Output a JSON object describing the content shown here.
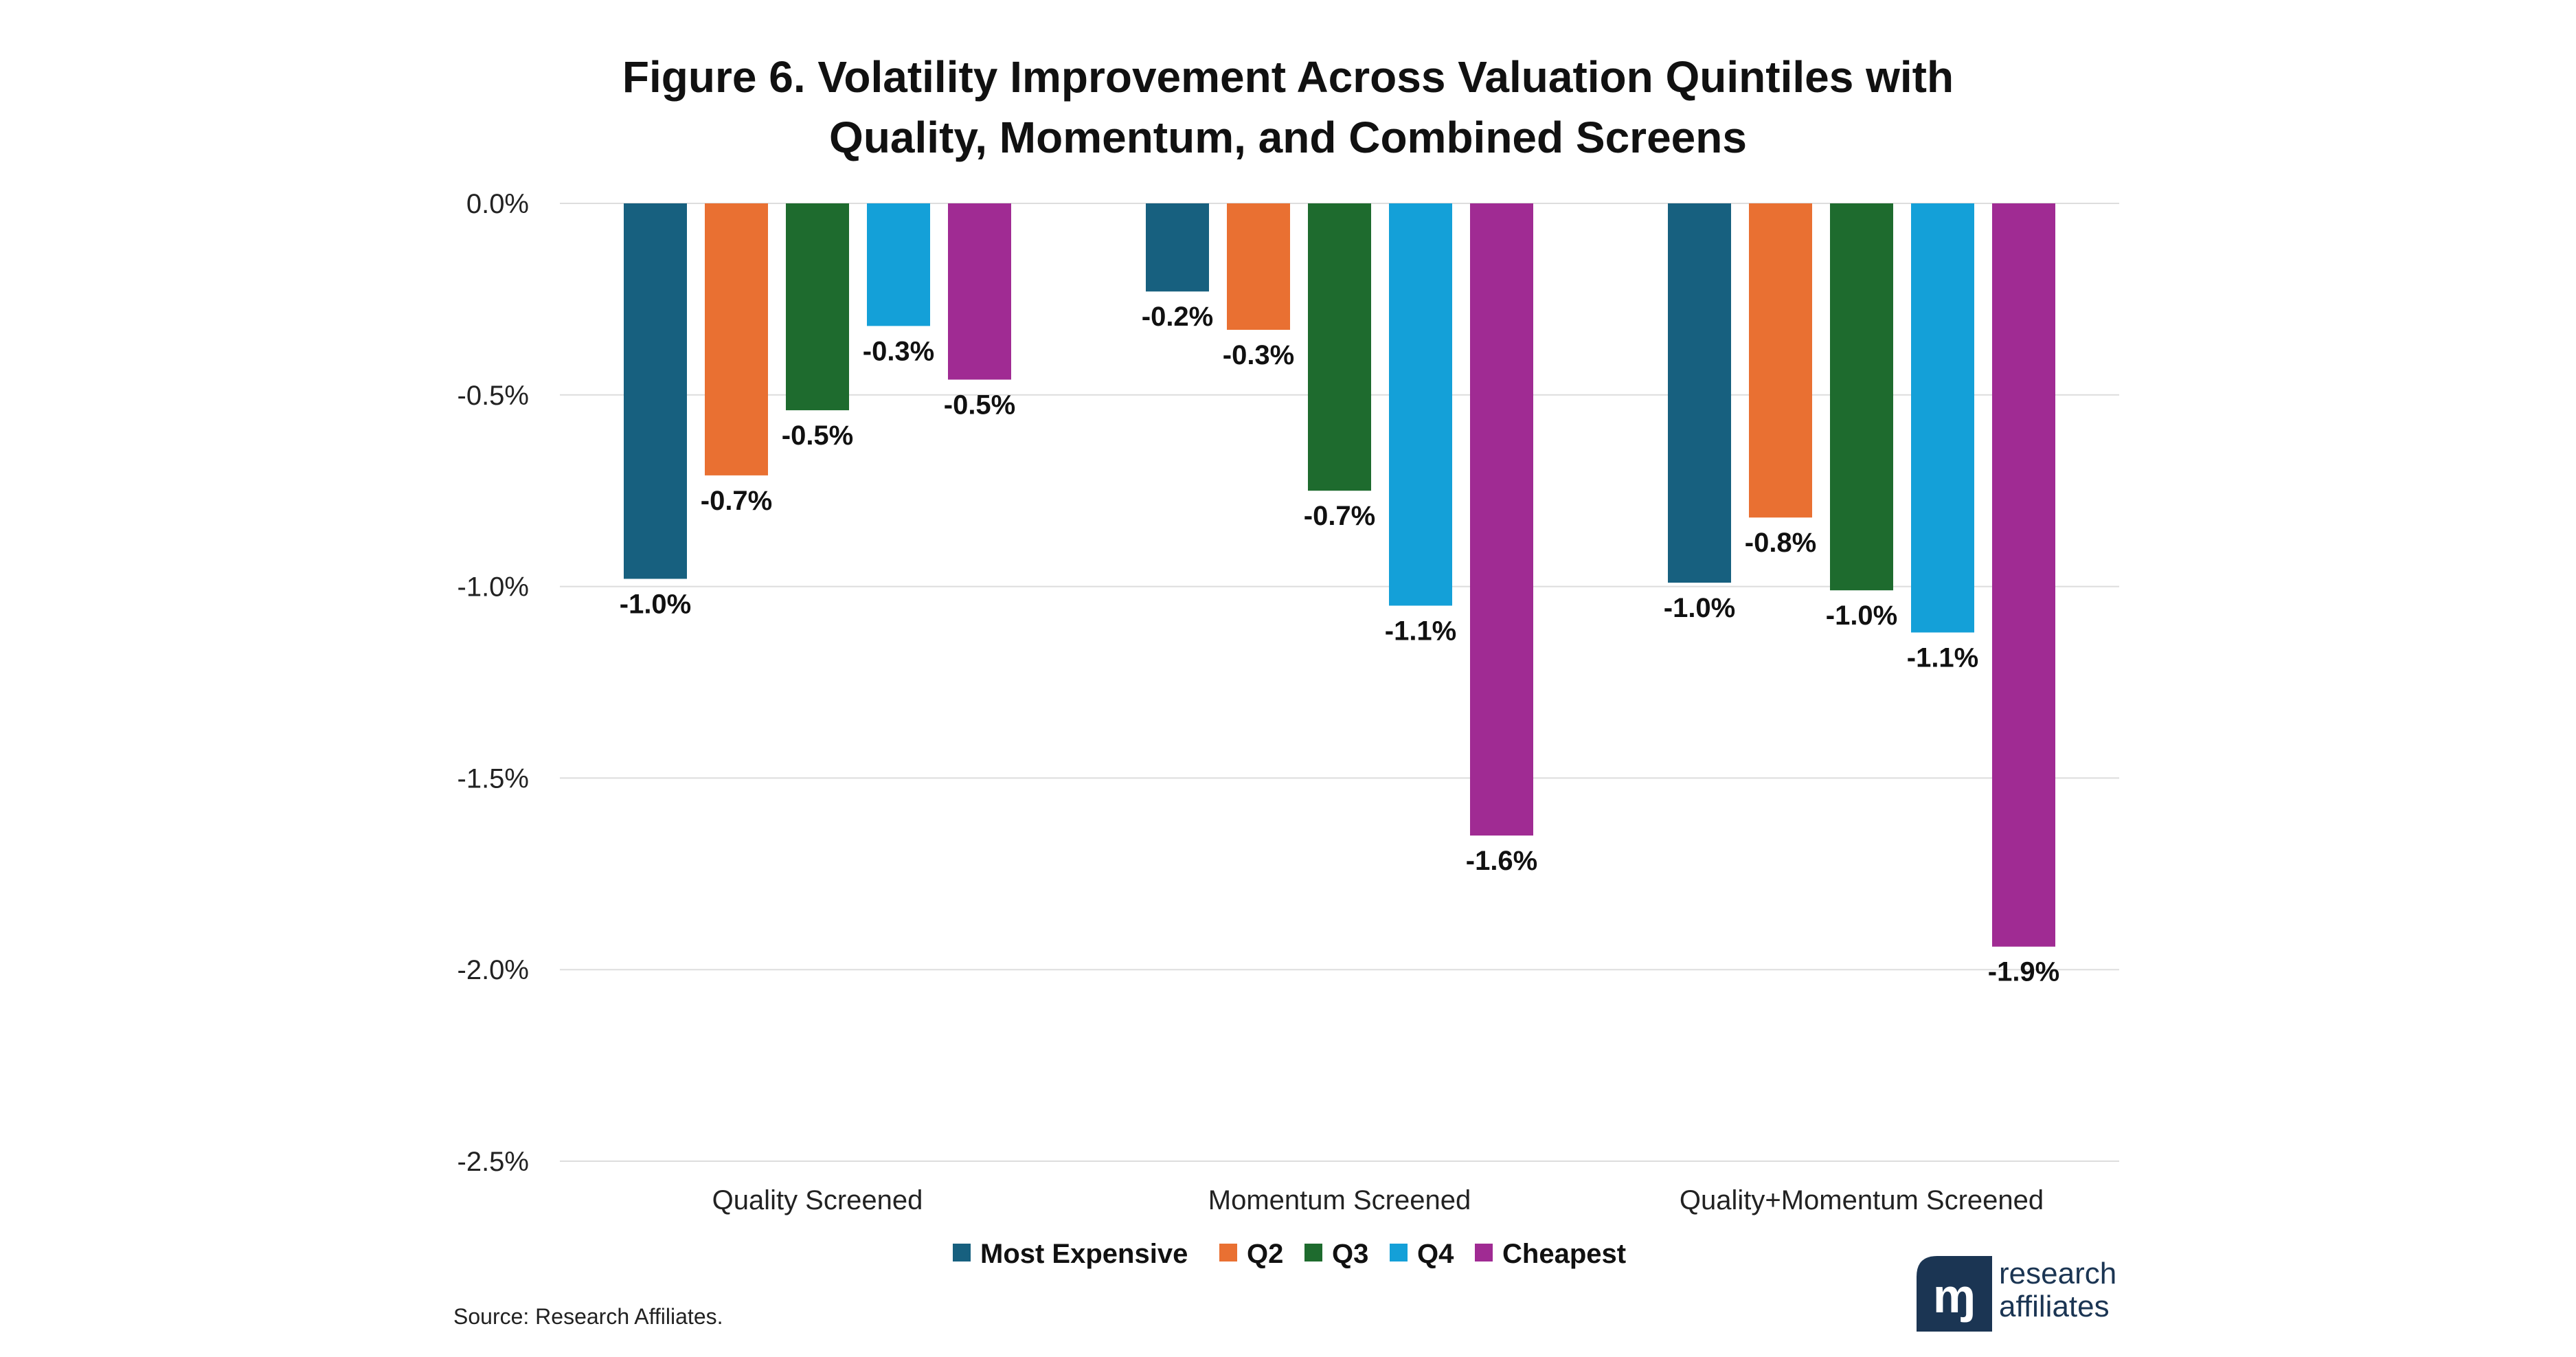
{
  "chart_data": {
    "type": "bar",
    "title": "Figure 6. Volatility Improvement Across Valuation Quintiles with Quality, Momentum, and Combined Screens",
    "title_lines": [
      "Figure 6. Volatility Improvement Across Valuation Quintiles with",
      "Quality, Momentum, and Combined Screens"
    ],
    "xlabel": "",
    "ylabel": "",
    "categories": [
      "Quality Screened",
      "Momentum Screened",
      "Quality+Momentum Screened"
    ],
    "series": [
      {
        "name": "Most Expensive",
        "color": "#17607f",
        "values": [
          -0.98,
          -0.23,
          -0.99
        ],
        "labels": [
          "-1.0%",
          "-0.2%",
          "-1.0%"
        ]
      },
      {
        "name": "Q2",
        "color": "#e97032",
        "values": [
          -0.71,
          -0.33,
          -0.82
        ],
        "labels": [
          "-0.7%",
          "-0.3%",
          "-0.8%"
        ]
      },
      {
        "name": "Q3",
        "color": "#1e6b2e",
        "values": [
          -0.54,
          -0.75,
          -1.01
        ],
        "labels": [
          "-0.5%",
          "-0.7%",
          "-1.0%"
        ]
      },
      {
        "name": "Q4",
        "color": "#14a0d8",
        "values": [
          -0.32,
          -1.05,
          -1.12
        ],
        "labels": [
          "-0.3%",
          "-1.1%",
          "-1.1%"
        ]
      },
      {
        "name": "Cheapest",
        "color": "#a02b93",
        "values": [
          -0.46,
          -1.65,
          -1.94
        ],
        "labels": [
          "-0.5%",
          "-1.6%",
          "-1.9%"
        ]
      }
    ],
    "ylim": [
      -2.5,
      0
    ],
    "yticks": [
      0,
      -0.5,
      -1.0,
      -1.5,
      -2.0,
      -2.5
    ],
    "ytick_labels": [
      "0.0%",
      "-0.5%",
      "-1.0%",
      "-1.5%",
      "-2.0%",
      "-2.5%"
    ],
    "grid": true,
    "legend_position": "bottom-center"
  },
  "source": "Source: Research Affiliates.",
  "logo": {
    "line1": "research",
    "line2": "affiliates",
    "mark": "ɱ"
  }
}
